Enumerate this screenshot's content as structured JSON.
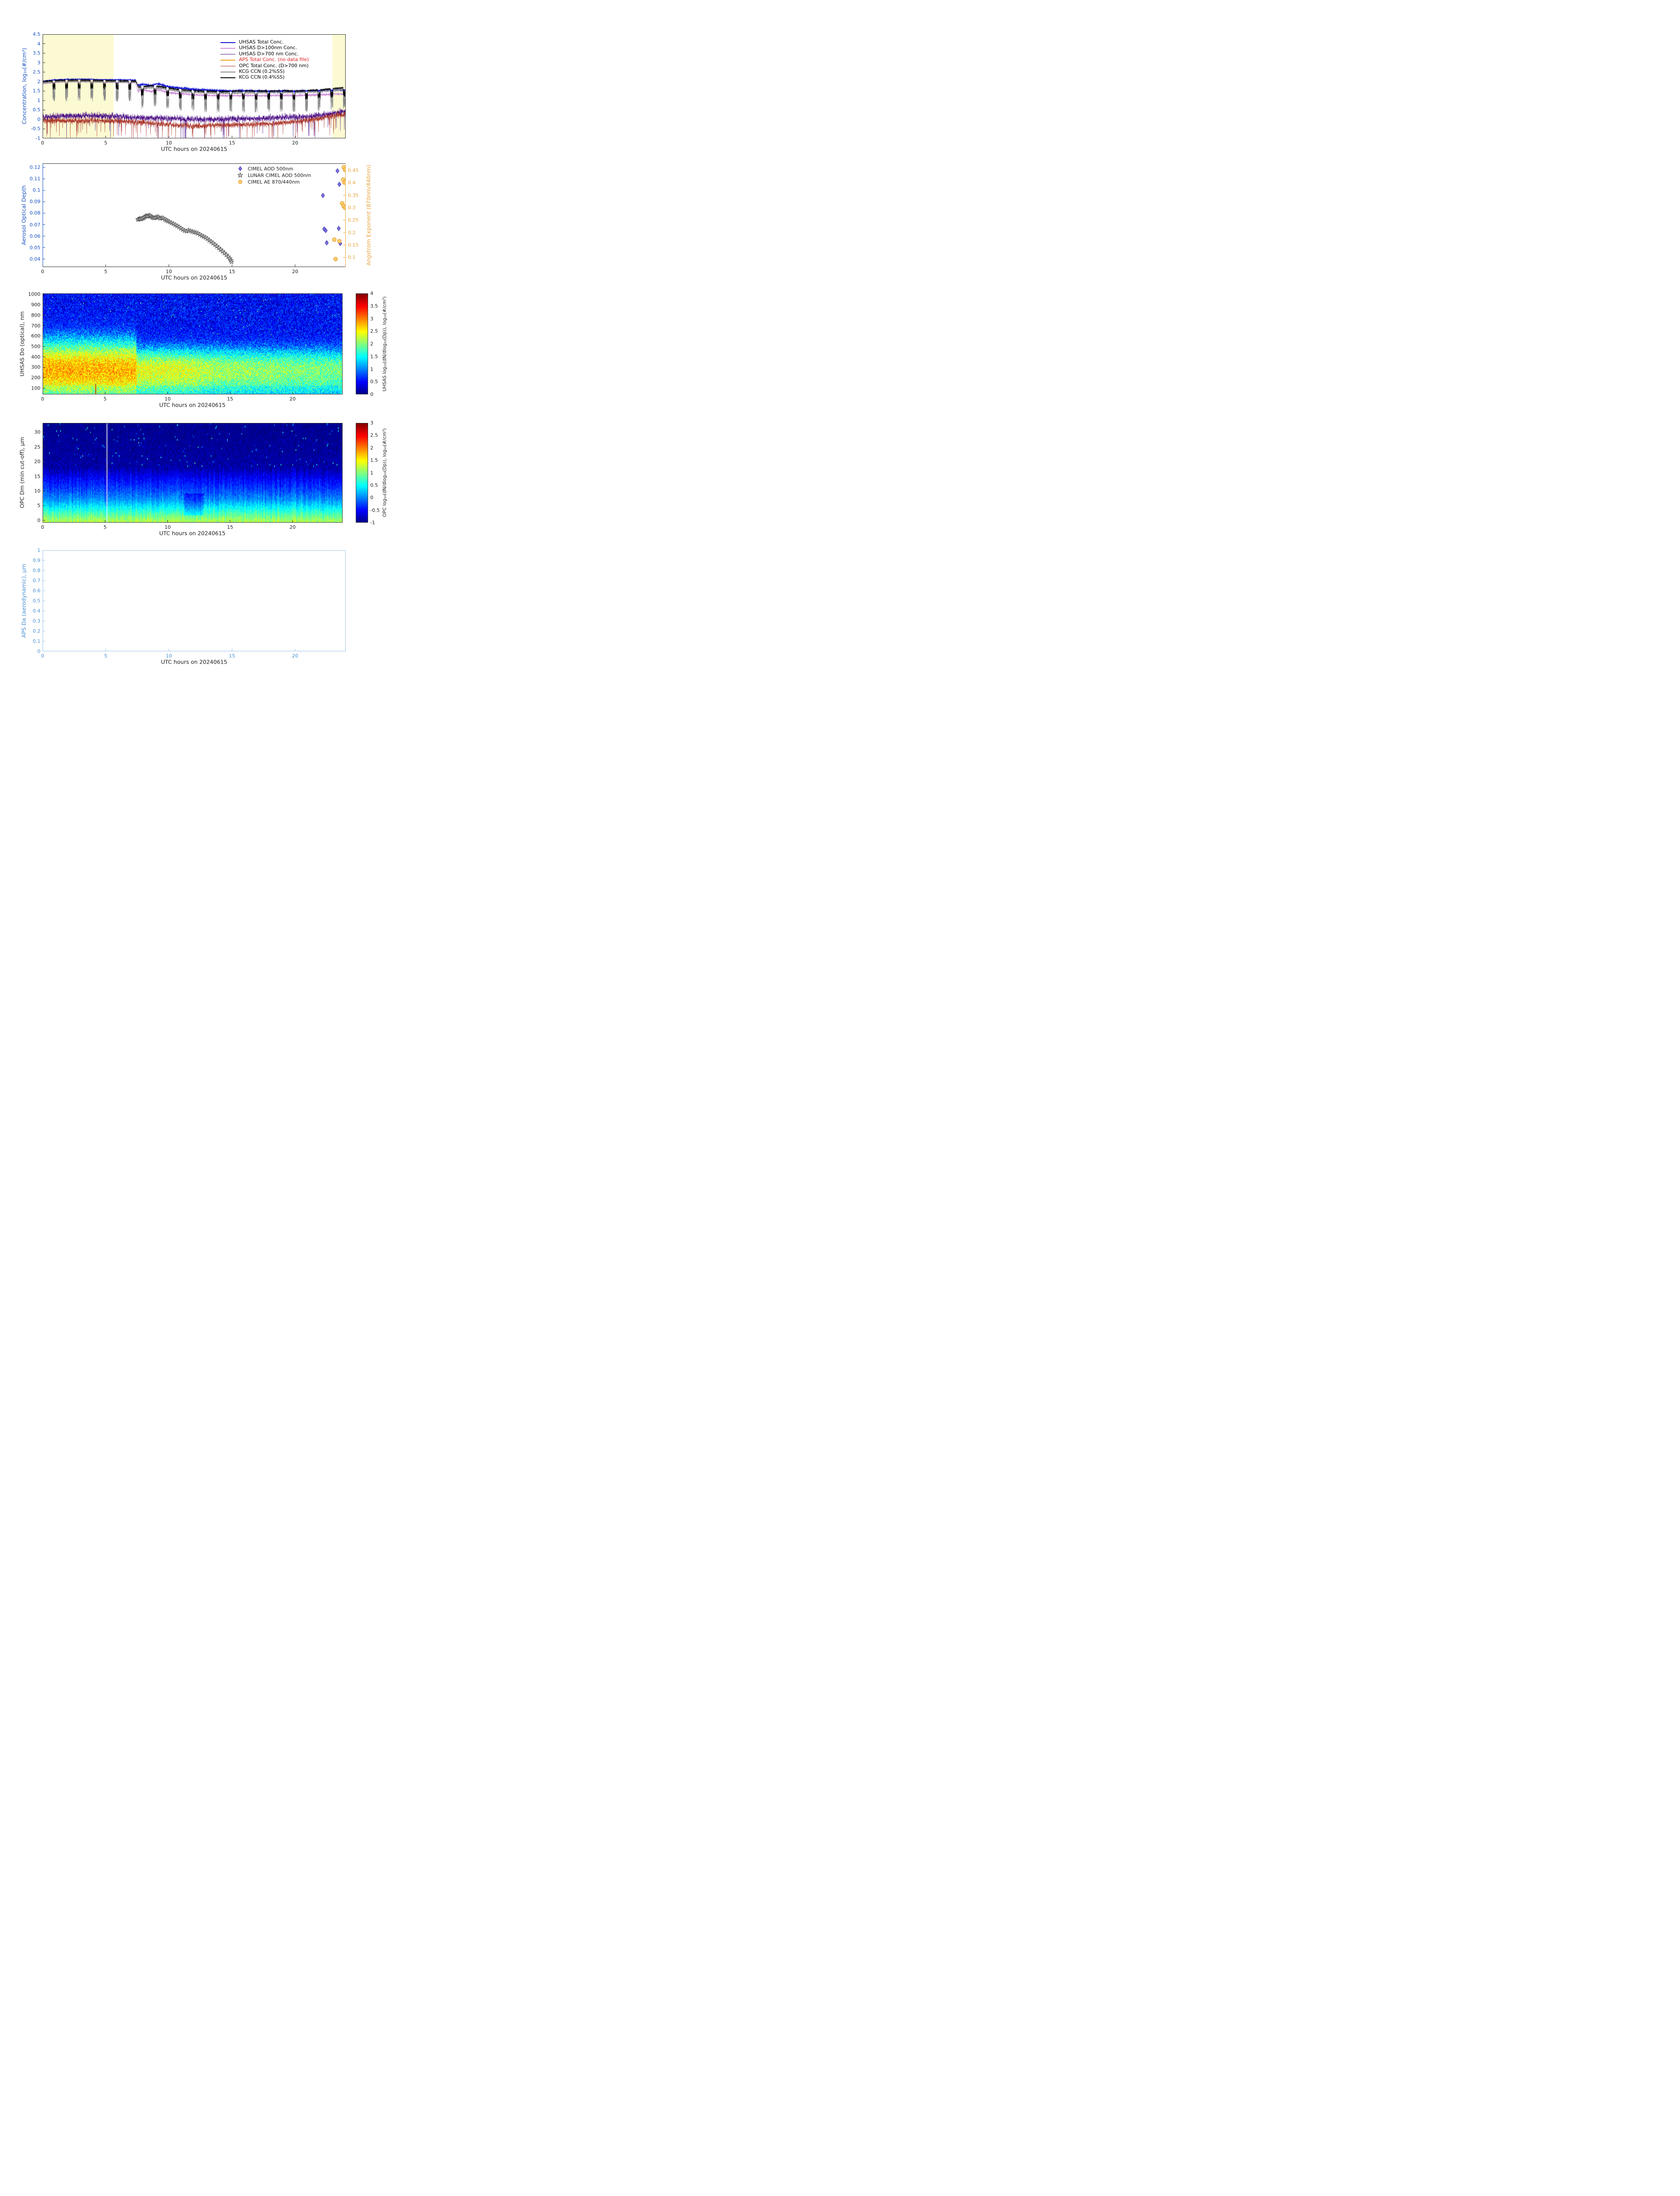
{
  "figure": {
    "date_label": "UTC hours on 20240615"
  },
  "chart_data": [
    {
      "type": "line",
      "xlabel": "UTC hours on 20240615",
      "ylabel": "Concentration, log₁₀(#/cm³)",
      "ylabel_color": "#1a53c4",
      "xlim": [
        0,
        24
      ],
      "ylim": [
        -1,
        4.5
      ],
      "xticks": [
        0,
        5,
        10,
        15,
        20
      ],
      "yticks": [
        4.5,
        4,
        3.5,
        3,
        2.5,
        2,
        1.5,
        1,
        0.5,
        0,
        -0.5,
        -1
      ],
      "shaded_regions": [
        {
          "x0": 0,
          "x1": 5.62,
          "color": "#fbfad2"
        },
        {
          "x0": 22.95,
          "x1": 24,
          "color": "#fbfad2"
        }
      ],
      "series": [
        {
          "name": "UHSAS Total Conc.",
          "color": "#0f0fd0",
          "kind": "smooth",
          "legend_text_color": "#000000",
          "anchors_x": [
            0,
            0.5,
            1,
            2,
            3,
            4,
            5,
            6,
            7,
            7.35,
            7.55,
            8,
            8.6,
            9,
            9.5,
            10,
            10.5,
            11,
            12,
            13,
            14,
            15,
            16,
            17,
            18,
            19,
            20,
            21,
            22,
            23,
            23.5,
            24
          ],
          "anchors_y": [
            2.02,
            2.06,
            2.1,
            2.12,
            2.13,
            2.12,
            2.1,
            2.1,
            2.09,
            2.08,
            1.8,
            1.85,
            1.78,
            1.88,
            1.82,
            1.72,
            1.68,
            1.65,
            1.58,
            1.55,
            1.52,
            1.5,
            1.52,
            1.5,
            1.48,
            1.5,
            1.48,
            1.5,
            1.52,
            1.55,
            1.57,
            1.55
          ],
          "noise_pre": 0.025,
          "noise_post": 0.06
        },
        {
          "name": "UHSAS D>100nm Conc.",
          "color": "#cd8fd6",
          "kind": "smooth",
          "legend_text_color": "#000000",
          "anchors_x": [
            0,
            0.5,
            1,
            2,
            3,
            4,
            5,
            6,
            7,
            7.35,
            7.55,
            8,
            8.6,
            9,
            9.5,
            10,
            10.5,
            11,
            12,
            13,
            14,
            15,
            16,
            17,
            18,
            19,
            20,
            21,
            22,
            23,
            23.5,
            24
          ],
          "anchors_y": [
            1.88,
            1.92,
            1.96,
            1.98,
            1.99,
            1.98,
            1.96,
            1.96,
            1.95,
            1.94,
            1.5,
            1.55,
            1.47,
            1.57,
            1.5,
            1.42,
            1.38,
            1.36,
            1.3,
            1.28,
            1.26,
            1.25,
            1.27,
            1.26,
            1.25,
            1.27,
            1.26,
            1.28,
            1.3,
            1.33,
            1.35,
            1.33
          ],
          "noise_pre": 0.02,
          "noise_post": 0.05
        },
        {
          "name": "UHSAS D>700 nm Conc.",
          "color": "#4a0d85",
          "kind": "noisy",
          "legend_text_color": "#000000",
          "anchors_x": [
            0,
            2,
            4,
            6,
            7.5,
            9,
            11,
            13,
            15,
            17,
            19,
            21,
            22.5,
            23,
            23.5,
            24
          ],
          "anchors_y": [
            0.12,
            0.18,
            0.2,
            0.15,
            0.1,
            0.08,
            0.02,
            0,
            0.02,
            0.05,
            0.1,
            0.15,
            0.25,
            0.3,
            0.38,
            0.42
          ],
          "noise": 0.22,
          "spike_prob": 0.015,
          "spike_depth": 0.9
        },
        {
          "name": "APS Total Conc. (no data file)",
          "color": "#f0a020",
          "kind": "none",
          "legend_text_color": "#e02020"
        },
        {
          "name": "OPC Total Conc. (D>700 nm)",
          "color": "#a93226",
          "kind": "noisy",
          "legend_text_color": "#000000",
          "anchors_x": [
            0,
            2,
            4,
            6,
            7.5,
            9,
            10,
            11,
            12,
            13,
            14,
            15,
            16,
            17,
            18,
            19,
            20,
            21,
            22,
            23,
            24
          ],
          "anchors_y": [
            -0.05,
            -0.08,
            -0.05,
            -0.08,
            -0.15,
            -0.2,
            -0.28,
            -0.3,
            -0.35,
            -0.32,
            -0.3,
            -0.3,
            -0.28,
            -0.25,
            -0.22,
            -0.18,
            -0.12,
            -0.05,
            0.05,
            0.2,
            0.28
          ],
          "noise": 0.2,
          "spike_prob": 0.03,
          "spike_depth": 0.7
        },
        {
          "name": "KCG CCN (0.2%SS)",
          "color": "#8c8c8c",
          "kind": "ccn",
          "legend_text_color": "#000000",
          "anchors_x": [
            0,
            1,
            2,
            3,
            4,
            5,
            6,
            7,
            7.4,
            7.6,
            8.5,
            9.5,
            10.5,
            11.5,
            12.5,
            13.5,
            14.5,
            15.5,
            17,
            18,
            19,
            20,
            21,
            22,
            23,
            24
          ],
          "anchors_y": [
            1.93,
            1.99,
            2.01,
            2.02,
            2,
            1.99,
            1.98,
            1.97,
            1.96,
            1.6,
            1.68,
            1.63,
            1.52,
            1.45,
            1.42,
            1.4,
            1.38,
            1.4,
            1.42,
            1.42,
            1.43,
            1.42,
            1.45,
            1.48,
            1.55,
            1.6
          ],
          "noise": 0.04,
          "depth": 1.05
        },
        {
          "name": "KCG CCN (0.4%SS)",
          "color": "#000000",
          "kind": "ccn",
          "legend_text_color": "#000000",
          "anchors_x": [
            0,
            1,
            2,
            3,
            4,
            5,
            6,
            7,
            7.4,
            7.6,
            8.5,
            9.5,
            10.5,
            11.5,
            12.5,
            13.5,
            14.5,
            15.5,
            17,
            18,
            19,
            20,
            21,
            22,
            23,
            24
          ],
          "anchors_y": [
            2,
            2.05,
            2.07,
            2.08,
            2.06,
            2.05,
            2.04,
            2.03,
            2.02,
            1.7,
            1.78,
            1.72,
            1.6,
            1.53,
            1.5,
            1.48,
            1.47,
            1.5,
            1.5,
            1.5,
            1.52,
            1.5,
            1.53,
            1.56,
            1.63,
            1.68
          ],
          "noise": 0.035,
          "depth": 0.48
        }
      ]
    },
    {
      "type": "scatter",
      "xlabel": "UTC hours on 20240615",
      "ylabel_left": "Aerosol Optical Depth",
      "ylabel_right": "Angstrom Exponent (870nm/440nm)",
      "left_color": "#1a53c4",
      "right_color": "#e8a33d",
      "xlim": [
        0,
        24
      ],
      "ylim_left": [
        0.033,
        0.1235
      ],
      "ylim_right": [
        0.062,
        0.478
      ],
      "xticks": [
        0,
        5,
        10,
        15,
        20
      ],
      "yticks_left": [
        0.04,
        0.05,
        0.06,
        0.07,
        0.08,
        0.09,
        0.1,
        0.11,
        0.12
      ],
      "yticks_right": [
        0.1,
        0.15,
        0.2,
        0.25,
        0.3,
        0.35,
        0.4,
        0.45
      ],
      "series": [
        {
          "name": "CIMEL AOD 500nm",
          "marker": "diamond",
          "axis": "left",
          "color_fill": "#7d6ee0",
          "color_edge": "#3c3cae",
          "points": [
            [
              22.2,
              0.0955
            ],
            [
              23.35,
              0.117
            ],
            [
              23.5,
              0.1052
            ],
            [
              22.3,
              0.0662
            ],
            [
              22.42,
              0.0649
            ],
            [
              23.45,
              0.0667
            ],
            [
              22.5,
              0.0542
            ],
            [
              23.57,
              0.0536
            ]
          ]
        },
        {
          "name": "LUNAR CIMEL AOD 500nm",
          "marker": "star",
          "axis": "left",
          "color_fill": "#b9b9b9",
          "color_edge": "#3d3d3d",
          "points": [
            [
              7.55,
              0.0745
            ],
            [
              7.62,
              0.0748
            ],
            [
              7.7,
              0.0752
            ],
            [
              7.78,
              0.0749
            ],
            [
              7.86,
              0.0753
            ],
            [
              7.95,
              0.0757
            ],
            [
              8.03,
              0.0762
            ],
            [
              8.12,
              0.0771
            ],
            [
              8.2,
              0.0777
            ],
            [
              8.28,
              0.0772
            ],
            [
              8.36,
              0.0776
            ],
            [
              8.45,
              0.078
            ],
            [
              8.53,
              0.0777
            ],
            [
              8.62,
              0.0769
            ],
            [
              8.7,
              0.0763
            ],
            [
              8.8,
              0.076
            ],
            [
              8.9,
              0.0759
            ],
            [
              9,
              0.0764
            ],
            [
              9.1,
              0.0769
            ],
            [
              9.2,
              0.0763
            ],
            [
              9.3,
              0.0755
            ],
            [
              9.42,
              0.0759
            ],
            [
              9.55,
              0.0757
            ],
            [
              9.68,
              0.0746
            ],
            [
              9.8,
              0.0738
            ],
            [
              9.92,
              0.0731
            ],
            [
              10.05,
              0.0724
            ],
            [
              10.2,
              0.0716
            ],
            [
              10.35,
              0.0708
            ],
            [
              10.5,
              0.0698
            ],
            [
              10.65,
              0.069
            ],
            [
              10.8,
              0.068
            ],
            [
              10.95,
              0.0668
            ],
            [
              11.1,
              0.0657
            ],
            [
              11.25,
              0.0648
            ],
            [
              11.4,
              0.0643
            ],
            [
              11.55,
              0.0651
            ],
            [
              11.7,
              0.0646
            ],
            [
              11.85,
              0.0639
            ],
            [
              12,
              0.0635
            ],
            [
              12.15,
              0.063
            ],
            [
              12.3,
              0.0624
            ],
            [
              12.45,
              0.0614
            ],
            [
              12.6,
              0.0604
            ],
            [
              12.75,
              0.0596
            ],
            [
              12.9,
              0.0588
            ],
            [
              13.05,
              0.0577
            ],
            [
              13.2,
              0.0563
            ],
            [
              13.35,
              0.0551
            ],
            [
              13.5,
              0.0538
            ],
            [
              13.65,
              0.0525
            ],
            [
              13.8,
              0.0511
            ],
            [
              13.95,
              0.0497
            ],
            [
              14.1,
              0.0482
            ],
            [
              14.25,
              0.0467
            ],
            [
              14.4,
              0.0452
            ],
            [
              14.55,
              0.0437
            ],
            [
              14.7,
              0.042
            ],
            [
              14.82,
              0.0405
            ],
            [
              14.9,
              0.039
            ],
            [
              14.96,
              0.0376
            ]
          ]
        },
        {
          "name": "CIMEL AE 870/440nm",
          "marker": "circle",
          "axis": "right",
          "color_fill": "#ffcc70",
          "color_edge": "#d69a20",
          "points": [
            [
              23.85,
              0.462
            ],
            [
              23.95,
              0.452
            ],
            [
              23.8,
              0.413
            ],
            [
              23.9,
              0.401
            ],
            [
              23.72,
              0.318
            ],
            [
              23.83,
              0.307
            ],
            [
              23.95,
              0.3
            ],
            [
              23.1,
              0.172
            ],
            [
              23.5,
              0.166
            ],
            [
              23.2,
              0.094
            ]
          ]
        }
      ]
    },
    {
      "type": "heatmap",
      "xlabel": "UTC hours on 20240615",
      "ylabel": "UHSAS Do (optical), nm",
      "xlim": [
        0,
        24
      ],
      "ylim": [
        40,
        1010
      ],
      "xticks": [
        0,
        5,
        10,
        15,
        20
      ],
      "yticks": [
        100,
        200,
        300,
        400,
        500,
        600,
        700,
        800,
        900,
        1000
      ],
      "colorbar": {
        "lim": [
          0,
          4
        ],
        "ticks": [
          0,
          0.5,
          1,
          1.5,
          2,
          2.5,
          3,
          3.5,
          4
        ],
        "label": "UHSAS log₁₀(dN/dlog₁₀(Dp)), log₁₀(#/cm³)"
      },
      "pattern": {
        "amp_t": [
          0,
          7.45,
          7.55,
          11.5,
          14,
          19,
          24
        ],
        "amp_v": [
          2.8,
          2.78,
          2.4,
          2.35,
          2.15,
          2.05,
          1.95
        ],
        "center": 280,
        "width_low": 300,
        "width_high_pre": 235,
        "width_high_post": 175,
        "width_switch_t": 7.5,
        "bottom_factor": 0.93,
        "bg": 0.5,
        "bg_noise": 0.45,
        "speckle_prob": 0.004,
        "speckle_add": 1.3,
        "noise": 0.4,
        "red_spike": {
          "t": 4.25,
          "dmax": 140,
          "value": 3.7
        }
      }
    },
    {
      "type": "heatmap",
      "xlabel": "UTC hours on 20240615",
      "ylabel": "OPC Dm (min cut-off), μm",
      "xlim": [
        0,
        24
      ],
      "ylim": [
        -0.8,
        33.2
      ],
      "xticks": [
        0,
        5,
        10,
        15,
        20
      ],
      "yticks": [
        0,
        5,
        10,
        15,
        20,
        25,
        30
      ],
      "colorbar": {
        "lim": [
          -1,
          3
        ],
        "ticks": [
          -1,
          -0.5,
          0,
          0.5,
          1,
          1.5,
          2,
          2.5,
          3
        ],
        "label": "OPC log₁₀(dN/dlog₁₀(Dp)), log₁₀(#/cm³)"
      },
      "pattern": {
        "profile_m": [
          0,
          1.5,
          3,
          5,
          7,
          10,
          14,
          18,
          33
        ],
        "profile_v": [
          1.15,
          0.92,
          0.68,
          0.38,
          0.08,
          -0.2,
          -0.5,
          -0.85,
          -0.95
        ],
        "noise": 0.15,
        "streak": 0.15,
        "gap_t": 5.15,
        "speckle_prob": 0.012,
        "speckle_add": 0.55,
        "dip": {
          "t0": 11.3,
          "t1": 12.9,
          "m0": 1.5,
          "m1": 9,
          "dv": -0.33
        }
      }
    },
    {
      "type": "line",
      "empty": true,
      "xlabel": "UTC hours on 20240615",
      "ylabel": "APS Da (aerodynamic), μm",
      "xlim": [
        0,
        24
      ],
      "ylim": [
        0,
        1
      ],
      "xticks": [
        0,
        5,
        10,
        15,
        20
      ],
      "yticks": [
        0,
        0.1,
        0.2,
        0.3,
        0.4,
        0.5,
        0.6,
        0.7,
        0.8,
        0.9,
        1
      ],
      "axis_color": "#9dc3e6",
      "label_color": "#4a90d2"
    }
  ]
}
